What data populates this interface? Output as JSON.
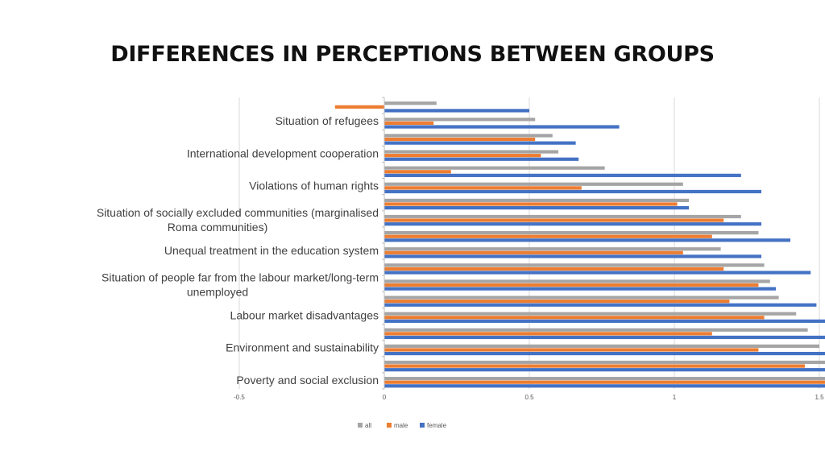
{
  "title": "DIFFERENCES IN PERCEPTIONS BETWEEN GROUPS",
  "colors": {
    "all": "#a5a5a5",
    "male": "#ed7d31",
    "female": "#4472c4",
    "grid": "#d9d9d9",
    "axis": "#bfbfbf"
  },
  "chart_data": {
    "type": "bar",
    "orientation": "horizontal",
    "title": "DIFFERENCES IN PERCEPTIONS BETWEEN GROUPS",
    "categories": [
      "Poverty and social exclusion",
      "",
      "Environment and sustainability",
      "",
      "Labour market disadvantages",
      "",
      "Situation of people far from the labour market/long-term unemployed",
      "",
      "Unequal treatment in the education system",
      "",
      "Situation of socially excluded communities (marginalised Roma communities)",
      "",
      "Violations of human rights",
      "",
      "International development cooperation",
      "",
      "Situation of refugees",
      ""
    ],
    "series": [
      {
        "name": "all",
        "values": [
          1.6,
          1.53,
          1.5,
          1.46,
          1.42,
          1.36,
          1.33,
          1.31,
          1.16,
          1.29,
          1.23,
          1.05,
          1.03,
          0.76,
          0.6,
          0.58,
          0.52,
          0.18
        ]
      },
      {
        "name": "male",
        "values": [
          1.56,
          1.45,
          1.29,
          1.13,
          1.31,
          1.19,
          1.29,
          1.17,
          1.03,
          1.13,
          1.17,
          1.01,
          0.68,
          0.23,
          0.54,
          0.52,
          0.17,
          -0.17
        ]
      },
      {
        "name": "female",
        "values": [
          1.67,
          1.66,
          1.66,
          1.72,
          1.61,
          1.49,
          1.35,
          1.47,
          1.3,
          1.4,
          1.3,
          1.05,
          1.3,
          1.23,
          0.67,
          0.66,
          0.81,
          0.5
        ]
      }
    ],
    "xlim": [
      -0.5,
      2
    ],
    "xticks": [
      "-0.5",
      "0",
      "0.5",
      "1",
      "1.5",
      "2"
    ],
    "grid": true,
    "legend_position": "bottom"
  }
}
